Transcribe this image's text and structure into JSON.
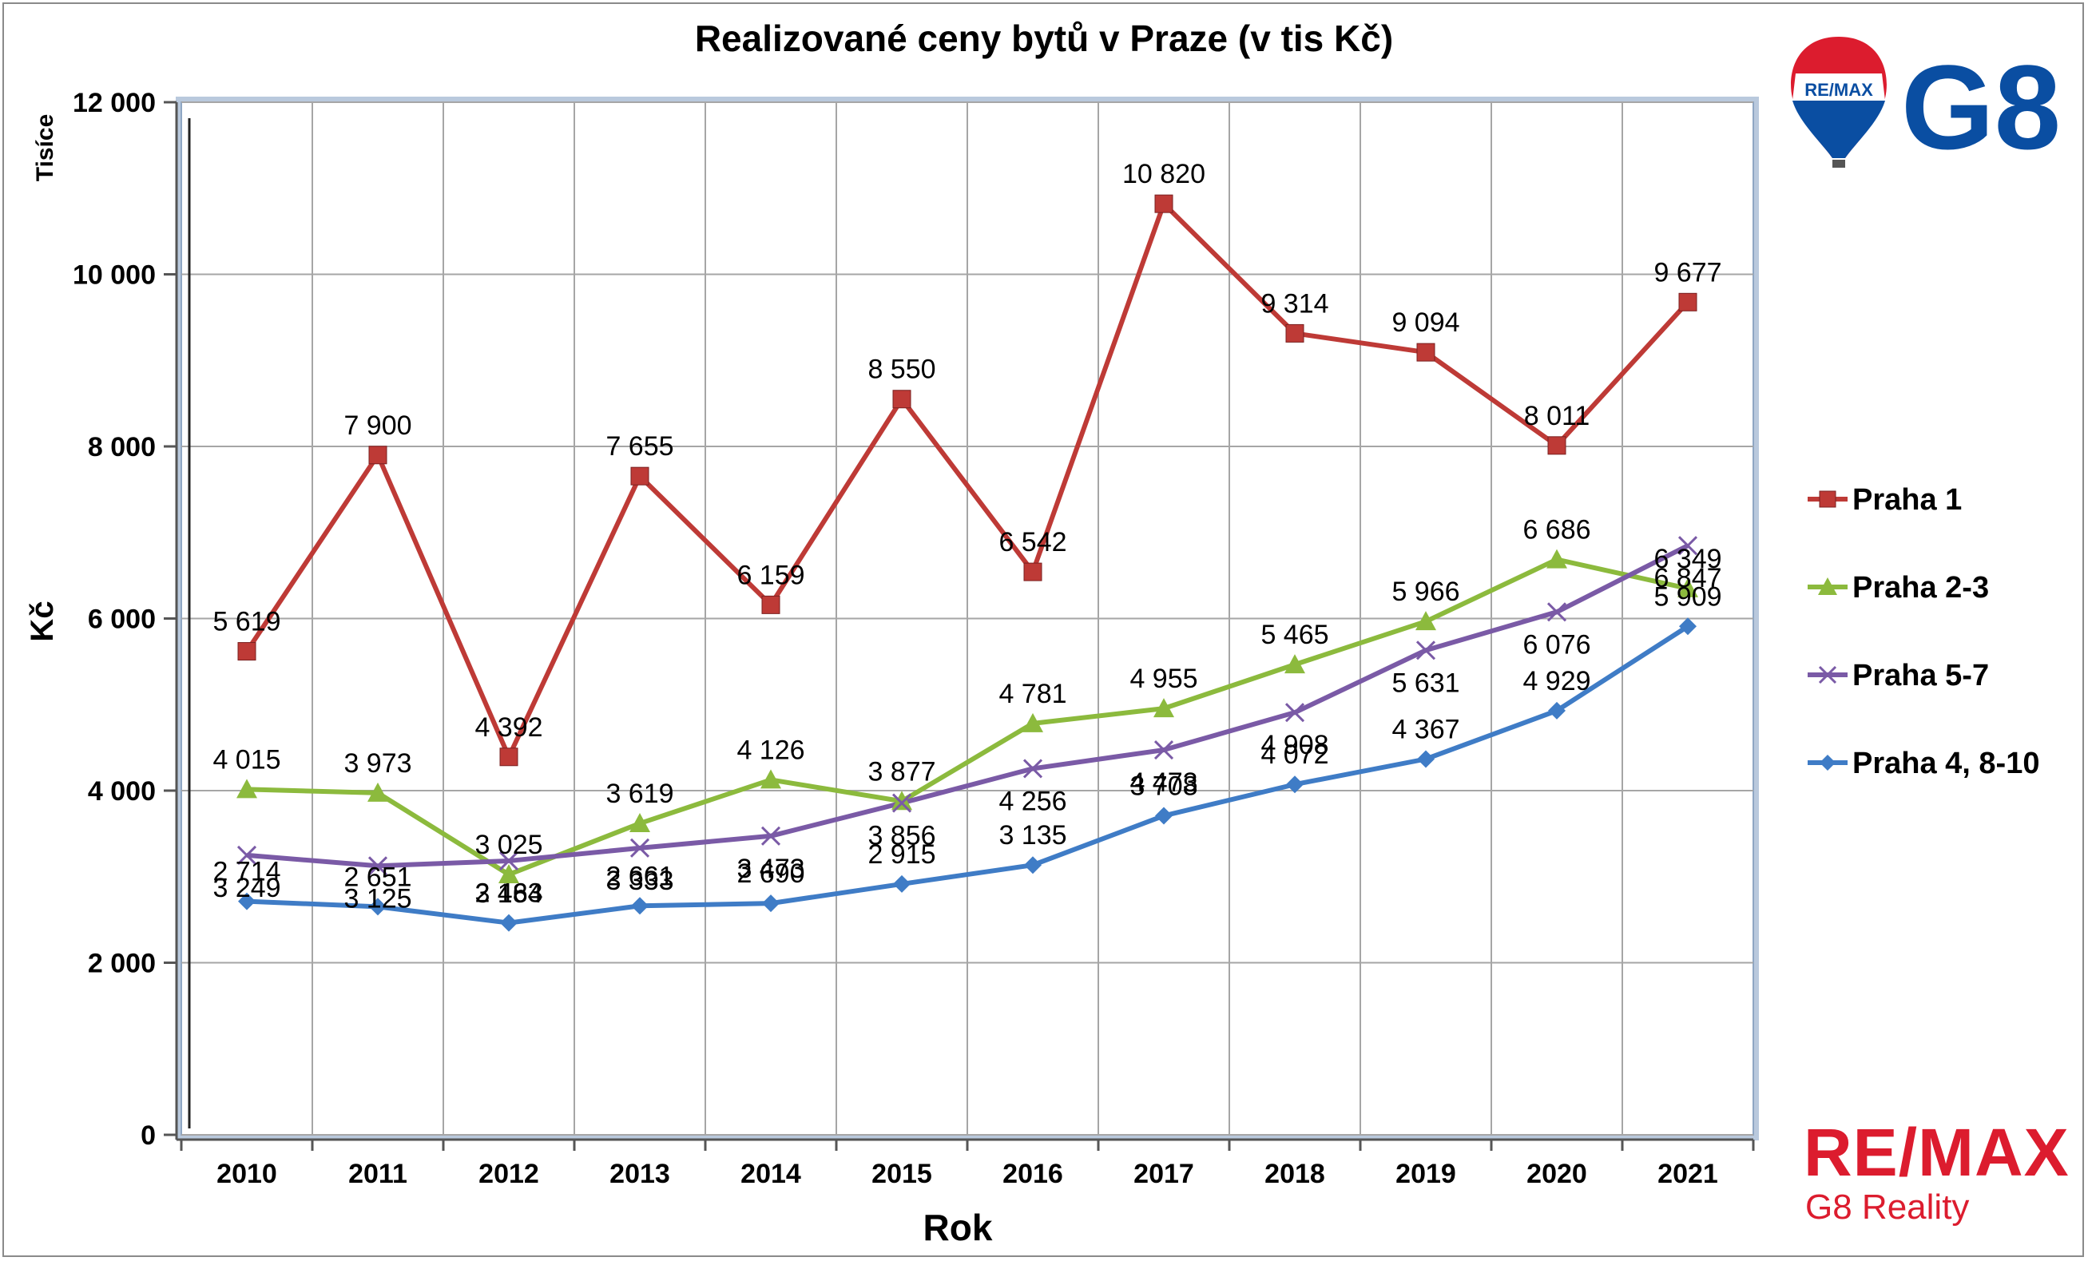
{
  "chart_data": {
    "type": "line",
    "title": "Realizované ceny bytů v Praze (v tis Kč)",
    "xlabel": "Rok",
    "ylabel": "Kč",
    "y_unit_label": "Tisíce",
    "ylim": [
      0,
      12000
    ],
    "y_ticks": [
      "0",
      "2 000",
      "4 000",
      "6 000",
      "8 000",
      "10 000",
      "12 000"
    ],
    "categories": [
      "2010",
      "2011",
      "2012",
      "2013",
      "2014",
      "2015",
      "2016",
      "2017",
      "2018",
      "2019",
      "2020",
      "2021"
    ],
    "grid": true,
    "legend_position": "right",
    "series": [
      {
        "name": "Praha 1",
        "color": "#be3a36",
        "marker": "square",
        "values": [
          5619,
          7900,
          4392,
          7655,
          6159,
          8550,
          6542,
          10820,
          9314,
          9094,
          8011,
          9677
        ],
        "labels": [
          "5 619",
          "7 900",
          "4 392",
          "7 655",
          "6 159",
          "8 550",
          "6 542",
          "10 820",
          "9 314",
          "9 094",
          "8 011",
          "9 677"
        ]
      },
      {
        "name": "Praha 2-3",
        "color": "#8cba3d",
        "marker": "triangle",
        "values": [
          4015,
          3973,
          3025,
          3619,
          4126,
          3877,
          4781,
          4955,
          5465,
          5966,
          6686,
          6349
        ],
        "labels": [
          "4 015",
          "3 973",
          "3 025",
          "3 619",
          "4 126",
          "3 877",
          "4 781",
          "4 955",
          "5 465",
          "5 966",
          "6 686",
          "6 349"
        ]
      },
      {
        "name": "Praha 5-7",
        "color": "#7a5aa6",
        "marker": "x",
        "values": [
          3249,
          3125,
          3184,
          3333,
          3473,
          3856,
          4256,
          4473,
          4908,
          5631,
          6076,
          6847
        ],
        "labels": [
          "3 249",
          "3 125",
          "3 184",
          "3 333",
          "3 473",
          "3 856",
          "4 256",
          "4 473",
          "4 908",
          "5 631",
          "6 076",
          "6 847"
        ]
      },
      {
        "name": "Praha 4, 8-10",
        "color": "#3f7cc6",
        "marker": "diamond",
        "values": [
          2714,
          2651,
          2463,
          2661,
          2690,
          2915,
          3135,
          3708,
          4072,
          4367,
          4929,
          5909
        ],
        "labels": [
          "2 714",
          "2 651",
          "2 463",
          "2 661",
          "2 690",
          "2 915",
          "3 135",
          "3 708",
          "4 072",
          "4 367",
          "4 929",
          "5 909"
        ]
      }
    ]
  },
  "logos": {
    "balloon_text": "RE/MAX",
    "top_brand": "G8",
    "bottom_brand": "RE/MAX",
    "bottom_sub": "G8 Reality",
    "brand_red": "#dc1c2e",
    "brand_blue": "#0a4ea2"
  }
}
